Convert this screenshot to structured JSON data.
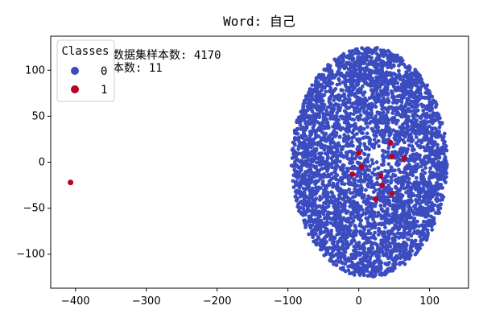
{
  "chart_data": {
    "type": "scatter",
    "title": "Word: 自己",
    "xlabel": "",
    "ylabel": "",
    "xlim": [
      -435,
      155
    ],
    "ylim": [
      -137,
      137
    ],
    "xticks": [
      -400,
      -300,
      -200,
      -100,
      0,
      100
    ],
    "yticks": [
      -100,
      -50,
      0,
      50,
      100
    ],
    "grid": false,
    "annotations": [
      "数据集样本数: 4170",
      "本数: 11"
    ],
    "legend": {
      "title": "Classes",
      "placement": "top-left",
      "entries": [
        {
          "label": "0",
          "color": "#3b4cc0"
        },
        {
          "label": "1",
          "color": "#b40426"
        }
      ]
    },
    "series": [
      {
        "name": "0",
        "color": "#3b4cc0",
        "count": 4170,
        "distribution": {
          "shape": "ellipse",
          "center": [
            15,
            0
          ],
          "radius_x": 110,
          "radius_y": 125
        }
      },
      {
        "name": "1",
        "color": "#b40426",
        "points": [
          [
            -407,
            -22
          ],
          [
            0,
            10
          ],
          [
            4,
            -5
          ],
          [
            -9,
            -13
          ],
          [
            31,
            -15
          ],
          [
            33,
            -25
          ],
          [
            45,
            21
          ],
          [
            47,
            6
          ],
          [
            47,
            -34
          ],
          [
            24,
            -40
          ],
          [
            64,
            4
          ]
        ]
      }
    ]
  }
}
